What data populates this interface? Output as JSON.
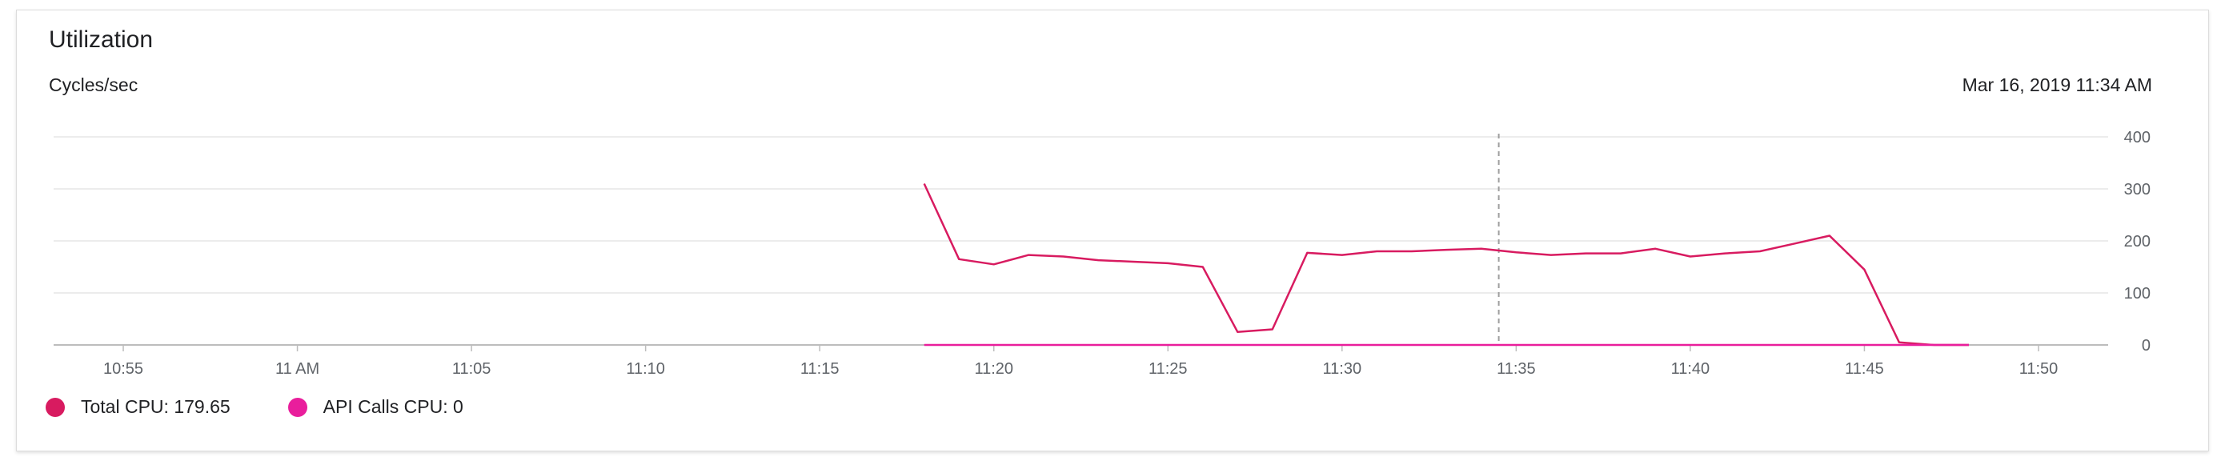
{
  "card": {
    "title": "Utilization",
    "ylabel": "Cycles/sec",
    "timestamp": "Mar 16, 2019 11:34 AM"
  },
  "legend": [
    {
      "label": "Total CPU: 179.65",
      "color": "#d81b60"
    },
    {
      "label": "API Calls CPU: 0",
      "color": "#e91e9c"
    }
  ],
  "chart_data": {
    "type": "line",
    "xlabel": "",
    "ylabel": "Cycles/sec",
    "xlim": [
      "10:53",
      "11:52"
    ],
    "ylim": [
      0,
      400
    ],
    "grid": true,
    "legend_position": "bottom-left",
    "x_ticks": [
      {
        "time": "10:55",
        "label": "10:55"
      },
      {
        "time": "11:00",
        "label": "11 AM"
      },
      {
        "time": "11:05",
        "label": "11:05"
      },
      {
        "time": "11:10",
        "label": "11:10"
      },
      {
        "time": "11:15",
        "label": "11:15"
      },
      {
        "time": "11:20",
        "label": "11:20"
      },
      {
        "time": "11:25",
        "label": "11:25"
      },
      {
        "time": "11:30",
        "label": "11:30"
      },
      {
        "time": "11:35",
        "label": "11:35"
      },
      {
        "time": "11:40",
        "label": "11:40"
      },
      {
        "time": "11:45",
        "label": "11:45"
      },
      {
        "time": "11:50",
        "label": "11:50"
      }
    ],
    "y_ticks": [
      0,
      100,
      200,
      300,
      400
    ],
    "cursor_time": "11:34:30",
    "series": [
      {
        "name": "Total CPU",
        "color": "#d81b60",
        "points": [
          [
            "11:18",
            310
          ],
          [
            "11:19",
            165
          ],
          [
            "11:20",
            155
          ],
          [
            "11:21",
            173
          ],
          [
            "11:22",
            170
          ],
          [
            "11:23",
            163
          ],
          [
            "11:24",
            160
          ],
          [
            "11:25",
            157
          ],
          [
            "11:26",
            150
          ],
          [
            "11:27",
            25
          ],
          [
            "11:28",
            30
          ],
          [
            "11:29",
            177
          ],
          [
            "11:30",
            173
          ],
          [
            "11:31",
            180
          ],
          [
            "11:32",
            180
          ],
          [
            "11:33",
            183
          ],
          [
            "11:34",
            185
          ],
          [
            "11:35",
            178
          ],
          [
            "11:36",
            173
          ],
          [
            "11:37",
            176
          ],
          [
            "11:38",
            176
          ],
          [
            "11:39",
            185
          ],
          [
            "11:40",
            170
          ],
          [
            "11:41",
            176
          ],
          [
            "11:42",
            180
          ],
          [
            "11:43",
            195
          ],
          [
            "11:44",
            210
          ],
          [
            "11:45",
            145
          ],
          [
            "11:46",
            5
          ],
          [
            "11:47",
            0
          ],
          [
            "11:48",
            0
          ]
        ]
      },
      {
        "name": "API Calls CPU",
        "color": "#e91e9c",
        "points": [
          [
            "11:18",
            0
          ],
          [
            "11:48",
            0
          ]
        ]
      }
    ]
  }
}
